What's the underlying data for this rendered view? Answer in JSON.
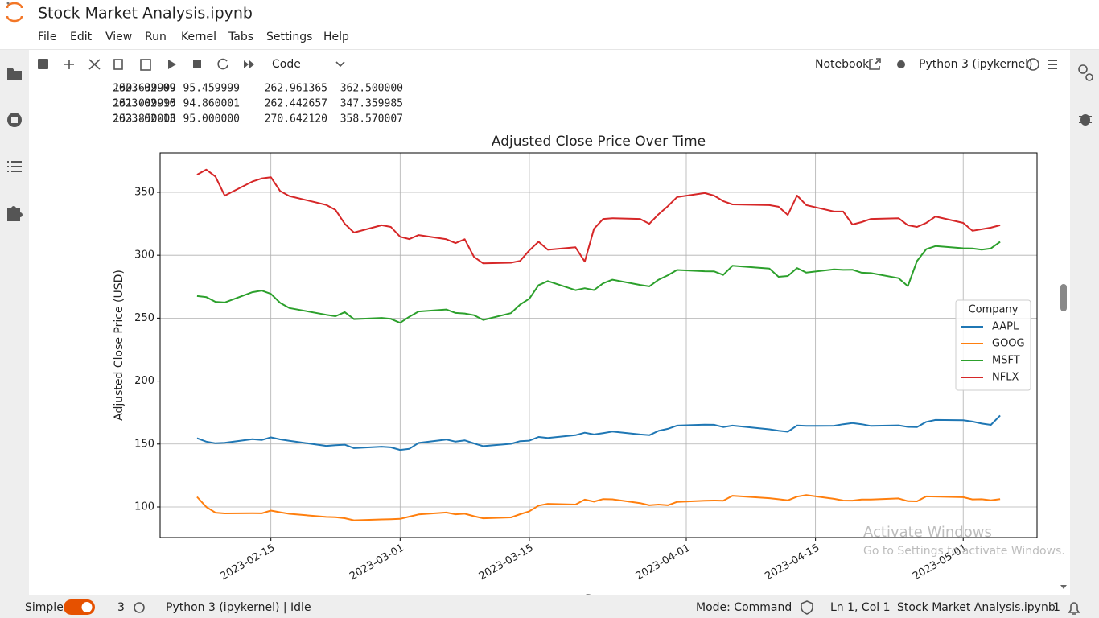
{
  "header": {
    "title": "Stock Market Analysis.ipynb",
    "menu": [
      "File",
      "Edit",
      "View",
      "Run",
      "Kernel",
      "Tabs",
      "Settings",
      "Help"
    ]
  },
  "toolbar": {
    "cell_type": "Code",
    "notebook": "Notebook",
    "kernel": "Python 3 (ipykernel)"
  },
  "output": {
    "rows": [
      [
        "2023-02-09",
        "150.639999",
        "95.459999",
        "262.961365",
        "362.500000"
      ],
      [
        "2023-02-10",
        "151.009995",
        "94.860001",
        "262.442657",
        "347.359985"
      ],
      [
        "2023-02-13",
        "153.850006",
        "95.000000",
        "270.642120",
        "358.570007"
      ]
    ]
  },
  "chart_data": {
    "type": "line",
    "title": "Adjusted Close Price Over Time",
    "xlabel": "Date",
    "ylabel": "Adjusted Close Price (USD)",
    "x": [
      "2023-02-07",
      "2023-02-08",
      "2023-02-09",
      "2023-02-10",
      "2023-02-13",
      "2023-02-14",
      "2023-02-15",
      "2023-02-16",
      "2023-02-17",
      "2023-02-21",
      "2023-02-22",
      "2023-02-23",
      "2023-02-24",
      "2023-02-27",
      "2023-02-28",
      "2023-03-01",
      "2023-03-02",
      "2023-03-03",
      "2023-03-06",
      "2023-03-07",
      "2023-03-08",
      "2023-03-09",
      "2023-03-10",
      "2023-03-13",
      "2023-03-14",
      "2023-03-15",
      "2023-03-16",
      "2023-03-17",
      "2023-03-20",
      "2023-03-21",
      "2023-03-22",
      "2023-03-23",
      "2023-03-24",
      "2023-03-27",
      "2023-03-28",
      "2023-03-29",
      "2023-03-30",
      "2023-03-31",
      "2023-04-03",
      "2023-04-04",
      "2023-04-05",
      "2023-04-06",
      "2023-04-10",
      "2023-04-11",
      "2023-04-12",
      "2023-04-13",
      "2023-04-14",
      "2023-04-17",
      "2023-04-18",
      "2023-04-19",
      "2023-04-20",
      "2023-04-21",
      "2023-04-24",
      "2023-04-25",
      "2023-04-26",
      "2023-04-27",
      "2023-04-28",
      "2023-05-01",
      "2023-05-02",
      "2023-05-03",
      "2023-05-04",
      "2023-05-05"
    ],
    "series": [
      {
        "name": "AAPL",
        "color": "#1f77b4",
        "values": [
          154.6,
          151.9,
          150.64,
          151.01,
          153.85,
          153.2,
          155.3,
          153.7,
          152.6,
          148.5,
          149.0,
          149.5,
          146.7,
          147.9,
          147.4,
          145.3,
          146.2,
          150.9,
          153.6,
          151.9,
          152.9,
          150.5,
          148.3,
          150.2,
          152.3,
          152.7,
          155.6,
          154.8,
          157.0,
          159.0,
          157.6,
          158.7,
          159.9,
          157.6,
          157.0,
          160.5,
          162.1,
          164.6,
          165.4,
          165.3,
          163.5,
          164.6,
          161.7,
          160.6,
          159.8,
          164.7,
          164.4,
          164.5,
          165.7,
          166.7,
          165.7,
          164.4,
          164.8,
          163.6,
          163.5,
          167.6,
          169.1,
          168.9,
          167.8,
          166.2,
          165.2,
          172.6
        ]
      },
      {
        "name": "GOOG",
        "color": "#ff7f0e",
        "values": [
          108.0,
          100.0,
          95.46,
          94.86,
          95.0,
          94.95,
          97.1,
          95.78,
          94.59,
          92.05,
          91.8,
          91.07,
          89.35,
          90.1,
          90.3,
          90.51,
          92.31,
          94.02,
          95.58,
          94.17,
          94.65,
          92.66,
          91.01,
          91.66,
          94.25,
          96.55,
          101.07,
          102.46,
          101.93,
          105.84,
          104.22,
          106.26,
          106.06,
          103.06,
          101.36,
          101.9,
          101.32,
          104.0,
          104.91,
          105.12,
          104.95,
          108.9,
          106.95,
          106.12,
          105.22,
          108.19,
          109.46,
          106.42,
          105.12,
          105.02,
          105.9,
          105.91,
          106.78,
          104.61,
          104.45,
          108.37,
          108.22,
          107.71,
          105.98,
          106.12,
          105.21,
          106.21
        ]
      },
      {
        "name": "MSFT",
        "color": "#2ca02c",
        "values": [
          267.56,
          266.73,
          262.96,
          262.44,
          270.64,
          271.92,
          269.32,
          262.15,
          258.06,
          252.67,
          251.51,
          254.77,
          249.22,
          250.16,
          249.42,
          246.27,
          251.11,
          255.29,
          256.87,
          254.15,
          253.7,
          252.32,
          248.59,
          253.92,
          260.79,
          265.44,
          276.2,
          279.43,
          272.23,
          273.78,
          272.29,
          277.66,
          280.57,
          276.38,
          275.23,
          280.51,
          284.05,
          288.3,
          287.23,
          287.18,
          284.34,
          291.6,
          289.39,
          282.83,
          283.49,
          289.84,
          286.14,
          288.8,
          288.37,
          288.45,
          286.11,
          285.76,
          281.77,
          275.42,
          295.37,
          304.83,
          307.26,
          305.56,
          305.41,
          304.4,
          305.41,
          310.65
        ]
      },
      {
        "name": "NFLX",
        "color": "#d62728",
        "values": [
          364,
          368,
          362.5,
          347.36,
          358.57,
          361,
          362,
          351,
          347,
          340,
          336,
          325,
          318,
          323.8,
          322.5,
          314.7,
          312.8,
          316,
          312.7,
          309.6,
          312.7,
          298.7,
          293.5,
          294,
          295.5,
          303.8,
          310.7,
          304.3,
          306.3,
          294.9,
          321,
          328.8,
          329.4,
          328.8,
          325,
          332.6,
          339,
          346.2,
          349.4,
          347.4,
          343,
          340.4,
          339.8,
          338.5,
          332,
          347.4,
          339.8,
          334.7,
          334.7,
          324.4,
          326.3,
          328.8,
          329.4,
          323.8,
          322.5,
          325.7,
          330.7,
          325.7,
          319.4,
          320.6,
          321.9,
          323.8
        ]
      }
    ],
    "xlim": [
      "2023-02-03",
      "2023-05-09"
    ],
    "xticks": [
      "2023-02-15",
      "2023-03-01",
      "2023-03-15",
      "2023-04-01",
      "2023-04-15",
      "2023-05-01"
    ],
    "ylim": [
      75.7,
      381.3
    ],
    "yticks": [
      100,
      150,
      200,
      250,
      300,
      350
    ],
    "grid": true,
    "legend_title": "Company",
    "legend": "center right"
  },
  "watermark": {
    "line1": "Activate Windows",
    "line2": "Go to Settings to activate Windows."
  },
  "status": {
    "mode": "Simple",
    "terminals": "3",
    "kernel_status": "Python 3 (ipykernel) | Idle",
    "command_mode": "Mode: Command",
    "cursor": "Ln 1, Col 1",
    "file": "Stock Market Analysis.ipynb",
    "notifications": "1"
  }
}
